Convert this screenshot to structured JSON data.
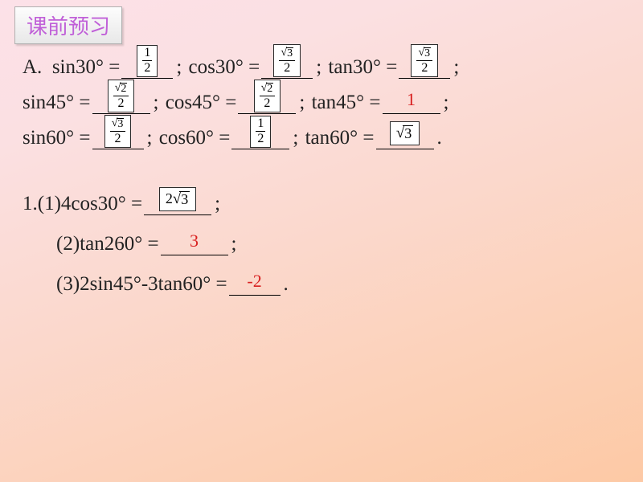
{
  "header": {
    "title": "课前预习"
  },
  "sectionA": {
    "label": "A.",
    "items": [
      {
        "func": "sin30°",
        "ans_type": "frac",
        "num": "1",
        "den": "2",
        "sqrt_num": false
      },
      {
        "func": "cos30°",
        "ans_type": "frac",
        "num": "3",
        "den": "2",
        "sqrt_num": true
      },
      {
        "func": "tan30°",
        "ans_type": "frac",
        "num": "3",
        "den": "2",
        "sqrt_num": true
      },
      {
        "func": "sin45°",
        "ans_type": "frac",
        "num": "2",
        "den": "2",
        "sqrt_num": true
      },
      {
        "func": "cos45°",
        "ans_type": "frac",
        "num": "2",
        "den": "2",
        "sqrt_num": true
      },
      {
        "func": "tan45°",
        "ans_type": "text",
        "text": "1"
      },
      {
        "func": "sin60°",
        "ans_type": "frac",
        "num": "3",
        "den": "2",
        "sqrt_num": true
      },
      {
        "func": "cos60°",
        "ans_type": "frac",
        "num": "1",
        "den": "2",
        "sqrt_num": false
      },
      {
        "func": "tan60°",
        "ans_type": "sqrtbox",
        "rad": "3"
      }
    ]
  },
  "section1": {
    "label": "1.",
    "parts": [
      {
        "idx": "(1)",
        "expr": "4cos30°",
        "ans_type": "sqrtbox",
        "pre": "2",
        "rad": "3",
        "tail": ";"
      },
      {
        "idx": "(2)",
        "expr": "tan260°",
        "ans_type": "text",
        "text": "3",
        "tail": ";"
      },
      {
        "idx": "(3)",
        "expr": "2sin45°-3tan60°",
        "ans_type": "text",
        "text": "-2",
        "tail": "."
      }
    ]
  },
  "colors": {
    "header_text": "#c060d8",
    "answer_text": "#d82020",
    "body_text": "#222222",
    "box_bg": "#ffffff",
    "box_border": "#2a2a2a"
  }
}
